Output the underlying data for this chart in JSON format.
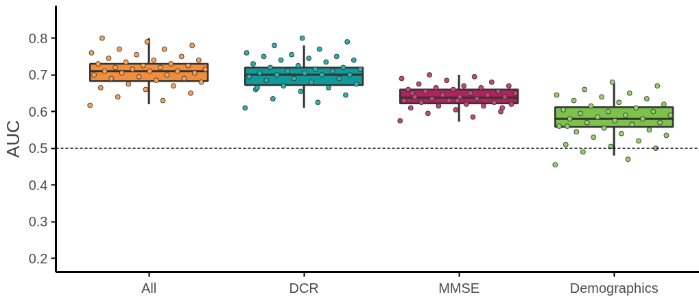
{
  "chart_data": {
    "type": "box",
    "ylabel": "AUC",
    "categories": [
      "All",
      "DCR",
      "MMSE",
      "Demographics"
    ],
    "colors": [
      "#f28e3a",
      "#119a9a",
      "#b0245e",
      "#7dc24b"
    ],
    "boxes": [
      {
        "low": 0.62,
        "q1": 0.683,
        "median": 0.71,
        "q3": 0.73,
        "high": 0.8
      },
      {
        "low": 0.61,
        "q1": 0.672,
        "median": 0.7,
        "q3": 0.72,
        "high": 0.78
      },
      {
        "low": 0.572,
        "q1": 0.622,
        "median": 0.638,
        "q3": 0.66,
        "high": 0.7
      },
      {
        "low": 0.48,
        "q1": 0.558,
        "median": 0.58,
        "q3": 0.612,
        "high": 0.678
      }
    ],
    "series": [
      {
        "type": "scatter",
        "color": "#f5a15e",
        "x": [
          "All",
          "All",
          "All",
          "All",
          "All",
          "All",
          "All",
          "All",
          "All",
          "All",
          "All",
          "All",
          "All",
          "All",
          "All",
          "All",
          "All",
          "All",
          "All",
          "All",
          "All",
          "All",
          "All",
          "All",
          "All",
          "All",
          "All",
          "All",
          "All",
          "All",
          "All",
          "All",
          "All",
          "All",
          "All",
          "All",
          "All",
          "All",
          "All",
          "All"
        ],
        "values": [
          0.617,
          0.63,
          0.64,
          0.65,
          0.66,
          0.665,
          0.67,
          0.675,
          0.68,
          0.685,
          0.69,
          0.69,
          0.695,
          0.7,
          0.7,
          0.705,
          0.705,
          0.71,
          0.71,
          0.71,
          0.715,
          0.715,
          0.72,
          0.72,
          0.725,
          0.725,
          0.73,
          0.73,
          0.735,
          0.74,
          0.74,
          0.745,
          0.75,
          0.755,
          0.76,
          0.77,
          0.77,
          0.78,
          0.79,
          0.8
        ]
      },
      {
        "type": "scatter",
        "color": "#2fb0ad",
        "x": [
          "DCR",
          "DCR",
          "DCR",
          "DCR",
          "DCR",
          "DCR",
          "DCR",
          "DCR",
          "DCR",
          "DCR",
          "DCR",
          "DCR",
          "DCR",
          "DCR",
          "DCR",
          "DCR",
          "DCR",
          "DCR",
          "DCR",
          "DCR",
          "DCR",
          "DCR",
          "DCR",
          "DCR",
          "DCR",
          "DCR",
          "DCR",
          "DCR",
          "DCR",
          "DCR",
          "DCR",
          "DCR",
          "DCR",
          "DCR",
          "DCR",
          "DCR",
          "DCR",
          "DCR",
          "DCR",
          "DCR"
        ],
        "values": [
          0.61,
          0.625,
          0.635,
          0.645,
          0.655,
          0.66,
          0.665,
          0.67,
          0.675,
          0.68,
          0.685,
          0.69,
          0.69,
          0.695,
          0.7,
          0.7,
          0.7,
          0.705,
          0.705,
          0.71,
          0.71,
          0.715,
          0.715,
          0.72,
          0.72,
          0.725,
          0.73,
          0.735,
          0.74,
          0.74,
          0.745,
          0.75,
          0.75,
          0.755,
          0.76,
          0.77,
          0.78,
          0.79,
          0.8,
          0.665
        ]
      },
      {
        "type": "scatter",
        "color": "#c04a7a",
        "x": [
          "MMSE",
          "MMSE",
          "MMSE",
          "MMSE",
          "MMSE",
          "MMSE",
          "MMSE",
          "MMSE",
          "MMSE",
          "MMSE",
          "MMSE",
          "MMSE",
          "MMSE",
          "MMSE",
          "MMSE",
          "MMSE",
          "MMSE",
          "MMSE",
          "MMSE",
          "MMSE",
          "MMSE",
          "MMSE",
          "MMSE",
          "MMSE",
          "MMSE",
          "MMSE",
          "MMSE",
          "MMSE",
          "MMSE",
          "MMSE",
          "MMSE",
          "MMSE",
          "MMSE",
          "MMSE",
          "MMSE",
          "MMSE",
          "MMSE",
          "MMSE",
          "MMSE",
          "MMSE"
        ],
        "values": [
          0.575,
          0.585,
          0.595,
          0.6,
          0.605,
          0.61,
          0.615,
          0.615,
          0.62,
          0.62,
          0.625,
          0.625,
          0.63,
          0.63,
          0.635,
          0.635,
          0.64,
          0.64,
          0.64,
          0.645,
          0.645,
          0.65,
          0.65,
          0.655,
          0.655,
          0.66,
          0.66,
          0.665,
          0.665,
          0.67,
          0.67,
          0.675,
          0.68,
          0.685,
          0.69,
          0.695,
          0.7,
          0.61,
          0.63,
          0.65
        ]
      },
      {
        "type": "scatter",
        "color": "#95cf6f",
        "x": [
          "Demographics",
          "Demographics",
          "Demographics",
          "Demographics",
          "Demographics",
          "Demographics",
          "Demographics",
          "Demographics",
          "Demographics",
          "Demographics",
          "Demographics",
          "Demographics",
          "Demographics",
          "Demographics",
          "Demographics",
          "Demographics",
          "Demographics",
          "Demographics",
          "Demographics",
          "Demographics",
          "Demographics",
          "Demographics",
          "Demographics",
          "Demographics",
          "Demographics",
          "Demographics",
          "Demographics",
          "Demographics",
          "Demographics",
          "Demographics",
          "Demographics",
          "Demographics",
          "Demographics",
          "Demographics",
          "Demographics",
          "Demographics",
          "Demographics",
          "Demographics",
          "Demographics",
          "Demographics"
        ],
        "values": [
          0.455,
          0.47,
          0.49,
          0.5,
          0.505,
          0.51,
          0.52,
          0.53,
          0.535,
          0.54,
          0.545,
          0.55,
          0.555,
          0.56,
          0.565,
          0.57,
          0.57,
          0.575,
          0.58,
          0.58,
          0.585,
          0.59,
          0.59,
          0.595,
          0.6,
          0.6,
          0.605,
          0.61,
          0.615,
          0.62,
          0.625,
          0.63,
          0.635,
          0.64,
          0.645,
          0.65,
          0.66,
          0.67,
          0.68,
          0.56
        ]
      }
    ],
    "ylim": [
      0.163,
      0.888
    ],
    "yticks": [
      0.2,
      0.3,
      0.4,
      0.5,
      0.6,
      0.7,
      0.8
    ],
    "ref_lines": [
      {
        "axis": "y",
        "value": 0.5,
        "color": "#000000",
        "line_style": "dashed"
      }
    ],
    "grid": false,
    "marker": "circle"
  }
}
